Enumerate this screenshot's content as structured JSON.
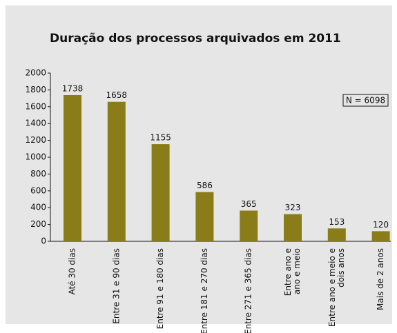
{
  "chart_data": {
    "type": "bar",
    "title": "Duração dos processos arquivados em 2011",
    "annotation": "N = 6098",
    "categories": [
      [
        "Até 30 dias"
      ],
      [
        "Entre 31 e 90 dias"
      ],
      [
        "Entre 91 e 180 dias"
      ],
      [
        "Entre 181 e 270 dias"
      ],
      [
        "Entre 271 e 365 dias"
      ],
      [
        "Entre ano e",
        "ano e meio"
      ],
      [
        "Entre ano e meio e",
        "dois anos"
      ],
      [
        "Mais de 2 anos"
      ]
    ],
    "values": [
      1738,
      1658,
      1155,
      586,
      365,
      323,
      153,
      120
    ],
    "color": "#8a7c19",
    "ylim": [
      0,
      2000
    ],
    "yticks": [
      0,
      200,
      400,
      600,
      800,
      1000,
      1200,
      1400,
      1600,
      1800,
      2000
    ],
    "grid": false
  }
}
